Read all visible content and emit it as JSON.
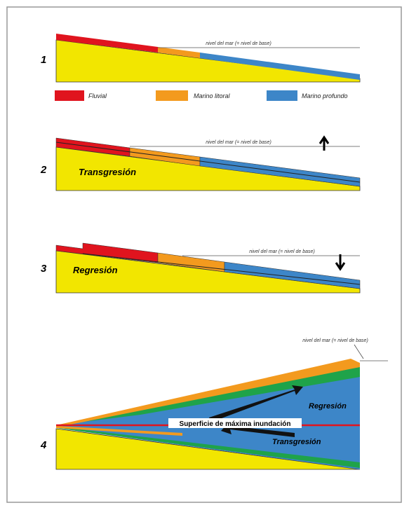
{
  "panels": [
    {
      "number": "1",
      "sea_level": "nivel del mar (= nivel de base)"
    },
    {
      "number": "2",
      "sea_level": "nivel del mar (= nivel de base)",
      "label": "Transgresión"
    },
    {
      "number": "3",
      "sea_level": "nivel del mar (= nivel de base)",
      "label": "Regresión"
    },
    {
      "number": "4",
      "sea_level": "nivel del mar (= nivel de base)",
      "surface": "Superficie de máxima inundación",
      "upper_arrow": "Regresión",
      "lower_arrow": "Transgresión"
    }
  ],
  "legend": [
    "Fluvial",
    "Marino litoral",
    "Marino profundo"
  ]
}
